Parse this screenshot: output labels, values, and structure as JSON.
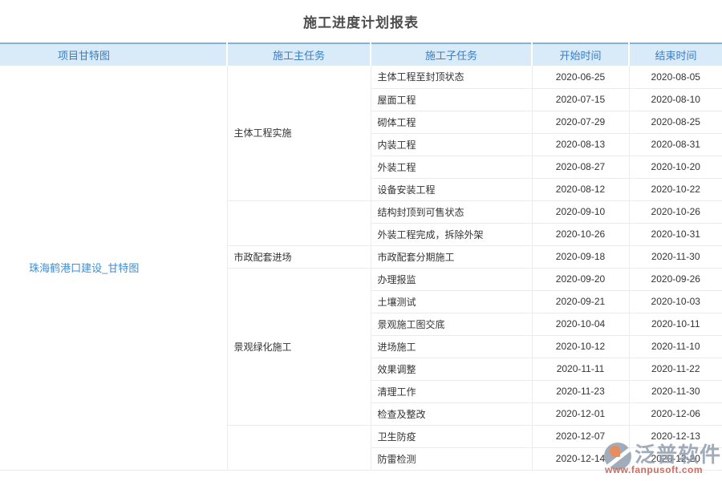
{
  "page": {
    "title": "施工进度计划报表"
  },
  "table": {
    "headers": [
      "项目甘特图",
      "施工主任务",
      "施工子任务",
      "开始时间",
      "结束时间"
    ],
    "gantt_link": "珠海鹤港口建设_甘特图",
    "groups": [
      {
        "main_task": "主体工程实施",
        "subtasks": [
          {
            "name": "主体工程至封顶状态",
            "start": "2020-06-25",
            "end": "2020-08-05"
          },
          {
            "name": "屋面工程",
            "start": "2020-07-15",
            "end": "2020-08-10"
          },
          {
            "name": "砌体工程",
            "start": "2020-07-29",
            "end": "2020-08-25"
          },
          {
            "name": "内装工程",
            "start": "2020-08-13",
            "end": "2020-08-31"
          },
          {
            "name": "外装工程",
            "start": "2020-08-27",
            "end": "2020-10-20"
          },
          {
            "name": "设备安装工程",
            "start": "2020-08-12",
            "end": "2020-10-22"
          }
        ]
      },
      {
        "main_task": "",
        "subtasks": [
          {
            "name": "结构封顶到可售状态",
            "start": "2020-09-10",
            "end": "2020-10-26"
          },
          {
            "name": "外装工程完成，拆除外架",
            "start": "2020-10-26",
            "end": "2020-10-31"
          }
        ]
      },
      {
        "main_task": "市政配套进场",
        "subtasks": [
          {
            "name": "市政配套分期施工",
            "start": "2020-09-18",
            "end": "2020-11-30"
          }
        ]
      },
      {
        "main_task": "景观绿化施工",
        "subtasks": [
          {
            "name": "办理报监",
            "start": "2020-09-20",
            "end": "2020-09-26"
          },
          {
            "name": "土壤测试",
            "start": "2020-09-21",
            "end": "2020-10-03"
          },
          {
            "name": "景观施工图交底",
            "start": "2020-10-04",
            "end": "2020-10-11"
          },
          {
            "name": "进场施工",
            "start": "2020-10-12",
            "end": "2020-11-10"
          },
          {
            "name": "效果调整",
            "start": "2020-11-11",
            "end": "2020-11-22"
          },
          {
            "name": "清理工作",
            "start": "2020-11-23",
            "end": "2020-11-30"
          },
          {
            "name": "检查及整改",
            "start": "2020-12-01",
            "end": "2020-12-06"
          }
        ]
      },
      {
        "main_task": "",
        "subtasks": [
          {
            "name": "卫生防疫",
            "start": "2020-12-07",
            "end": "2020-12-13"
          },
          {
            "name": "防雷检测",
            "start": "2020-12-14",
            "end": "2020-12-20"
          }
        ]
      }
    ]
  },
  "watermark": {
    "brand": "泛普软件",
    "url": "www.fanpusoft.com"
  },
  "colors": {
    "header_bg": "#d9eaf8",
    "header_text": "#3a7ec4",
    "header_top_border": "#7fb2dc",
    "row_border": "#ececec",
    "body_text": "#333333",
    "link": "#3e8ed2",
    "title": "#4d4d4d",
    "watermark_brand": "#8d9aac",
    "watermark_url": "#c05140",
    "watermark_logo_accent": "#e4763b"
  }
}
